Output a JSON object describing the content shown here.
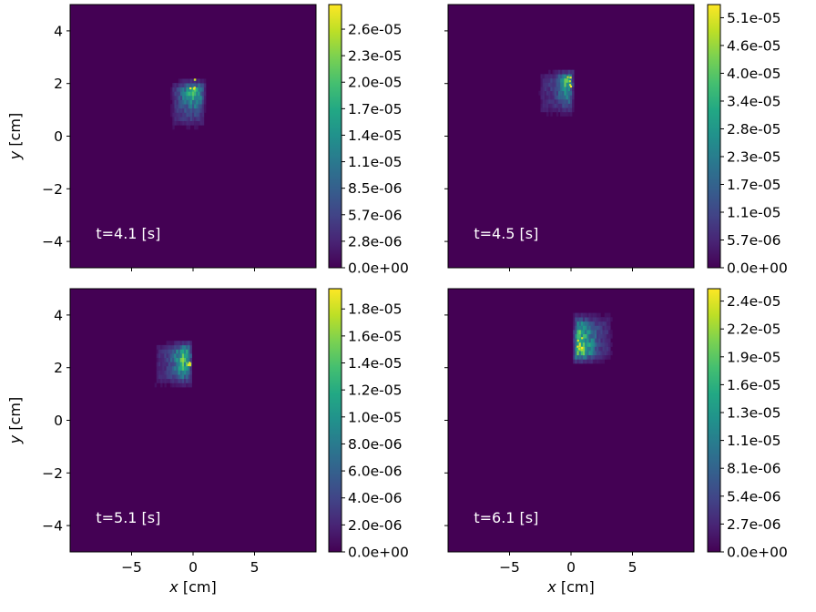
{
  "chart_data": [
    {
      "type": "heatmap",
      "annotation": "t=4.1 [s]",
      "xlabel": "",
      "ylabel": "y [cm]",
      "xlim": [
        -10,
        10
      ],
      "ylim": [
        -5,
        5
      ],
      "x_ticks": [],
      "y_ticks": [
        "4",
        "2",
        "0",
        "−2",
        "−4"
      ],
      "colorbar": {
        "min": 0,
        "max": 2.78e-05,
        "tick_labels": [
          "2.6e-05",
          "2.3e-05",
          "2.0e-05",
          "1.7e-05",
          "1.4e-05",
          "1.1e-05",
          "8.5e-06",
          "5.7e-06",
          "2.8e-06",
          "0.0e+00"
        ]
      },
      "blob": {
        "x_range": [
          -2.0,
          1.0
        ],
        "y_range": [
          0.1,
          2.1
        ],
        "peak": [
          -0.1,
          1.9
        ],
        "max": 2.78e-05
      }
    },
    {
      "type": "heatmap",
      "annotation": "t=4.5 [s]",
      "xlabel": "",
      "ylabel": "",
      "xlim": [
        -10,
        10
      ],
      "ylim": [
        -5,
        5
      ],
      "x_ticks": [],
      "y_ticks": [],
      "colorbar": {
        "min": 0,
        "max": 5.4e-05,
        "tick_labels": [
          "5.1e-05",
          "4.6e-05",
          "4.0e-05",
          "3.4e-05",
          "2.8e-05",
          "2.3e-05",
          "1.7e-05",
          "1.1e-05",
          "5.7e-06",
          "0.0e+00"
        ]
      },
      "blob": {
        "x_range": [
          -2.8,
          0.2
        ],
        "y_range": [
          0.6,
          2.5
        ],
        "peak": [
          -0.1,
          2.1
        ],
        "max": 5.4e-05
      }
    },
    {
      "type": "heatmap",
      "annotation": "t=5.1 [s]",
      "xlabel": "x [cm]",
      "ylabel": "y [cm]",
      "xlim": [
        -10,
        10
      ],
      "ylim": [
        -5,
        5
      ],
      "x_ticks": [
        "−5",
        "0",
        "5"
      ],
      "y_ticks": [
        "4",
        "2",
        "0",
        "−2",
        "−4"
      ],
      "colorbar": {
        "min": 0,
        "max": 1.95e-05,
        "tick_labels": [
          "1.8e-05",
          "1.6e-05",
          "1.4e-05",
          "1.2e-05",
          "1.0e-05",
          "8.0e-06",
          "6.0e-06",
          "4.0e-06",
          "2.0e-06",
          "0.0e+00"
        ]
      },
      "blob": {
        "x_range": [
          -3.3,
          -0.1
        ],
        "y_range": [
          1.1,
          3.0
        ],
        "peak": [
          -0.5,
          2.3
        ],
        "max": 1.95e-05
      }
    },
    {
      "type": "heatmap",
      "annotation": "t=6.1 [s]",
      "xlabel": "x [cm]",
      "ylabel": "",
      "xlim": [
        -10,
        10
      ],
      "ylim": [
        -5,
        5
      ],
      "x_ticks": [
        "−5",
        "0",
        "5"
      ],
      "y_ticks": [],
      "colorbar": {
        "min": 0,
        "max": 2.55e-05,
        "tick_labels": [
          "2.4e-05",
          "2.2e-05",
          "1.9e-05",
          "1.6e-05",
          "1.3e-05",
          "1.1e-05",
          "8.1e-06",
          "5.4e-06",
          "2.7e-06",
          "0.0e+00"
        ]
      },
      "blob": {
        "x_range": [
          0.0,
          3.4
        ],
        "y_range": [
          2.0,
          4.1
        ],
        "peak": [
          0.6,
          2.8
        ],
        "max": 2.55e-05
      }
    }
  ]
}
